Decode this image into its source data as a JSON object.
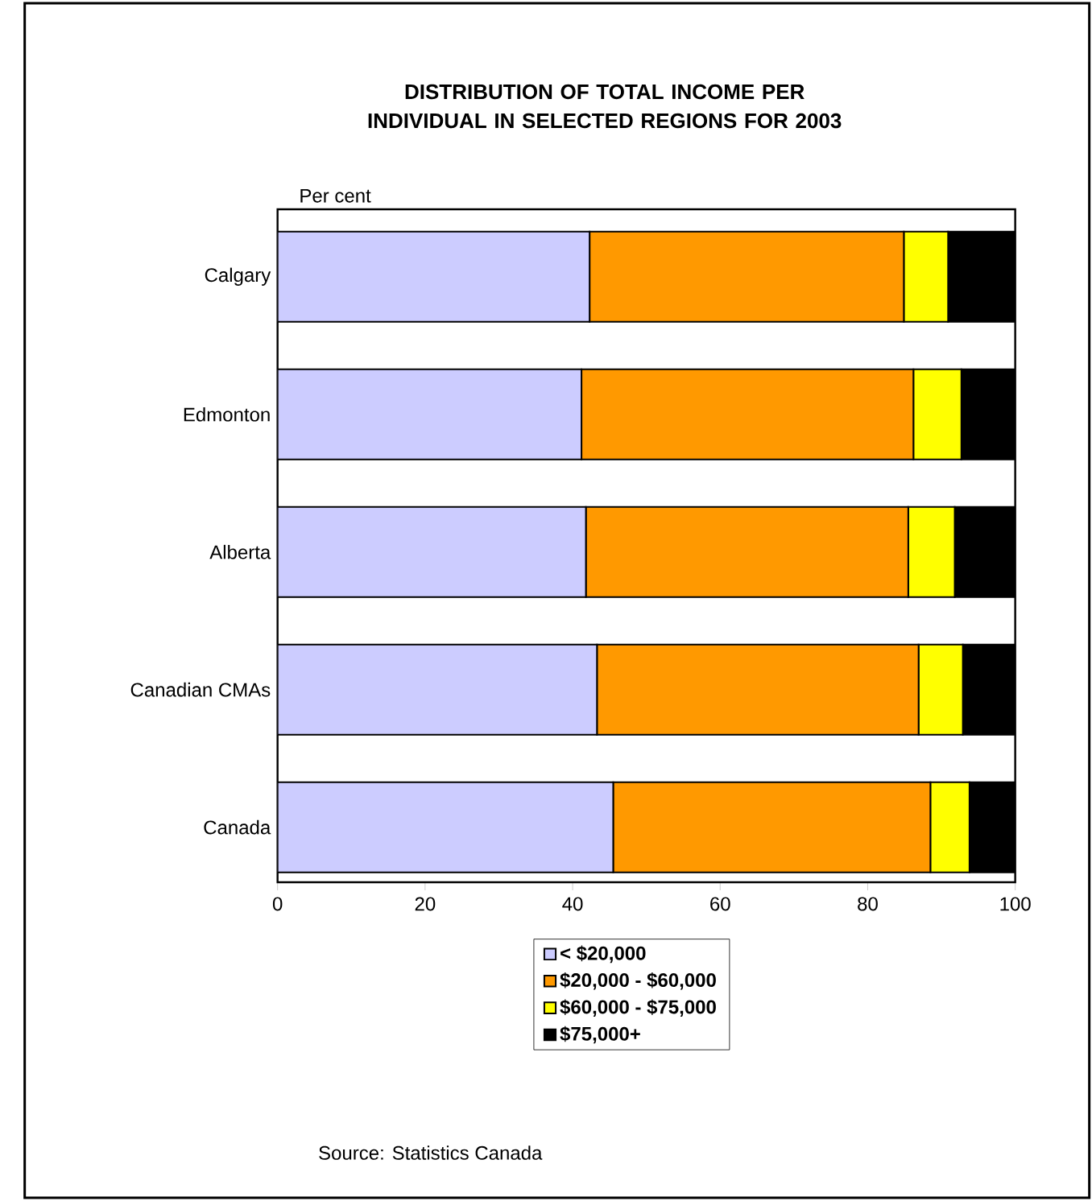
{
  "chart_data": {
    "type": "bar",
    "orientation": "horizontal",
    "stacked": true,
    "title": "DISTRIBUTION OF TOTAL INCOME PER INDIVIDUAL IN SELECTED REGIONS FOR 2003",
    "xlabel": "Per cent",
    "categories": [
      "Calgary",
      "Edmonton",
      "Alberta",
      "Canadian CMAs",
      "Canada"
    ],
    "series": [
      {
        "name": "< $20,000",
        "color": "#ccccff",
        "values": [
          42.3,
          41.2,
          41.8,
          43.3,
          45.5
        ]
      },
      {
        "name": "$20,000 - $60,000",
        "color": "#ff9900",
        "values": [
          42.6,
          45.0,
          43.7,
          43.6,
          43.0
        ]
      },
      {
        "name": "$60,000 - $75,000",
        "color": "#ffff00",
        "values": [
          6.0,
          6.5,
          6.3,
          6.0,
          5.3
        ]
      },
      {
        "name": "$75,000+",
        "color": "#000000",
        "values": [
          9.1,
          7.3,
          8.2,
          7.1,
          6.2
        ]
      }
    ],
    "xlim": [
      0,
      100
    ],
    "xticks": [
      0,
      20,
      40,
      60,
      80,
      100
    ],
    "legend": "bottom",
    "annotations": [
      "Source: Statistics Canada"
    ]
  }
}
